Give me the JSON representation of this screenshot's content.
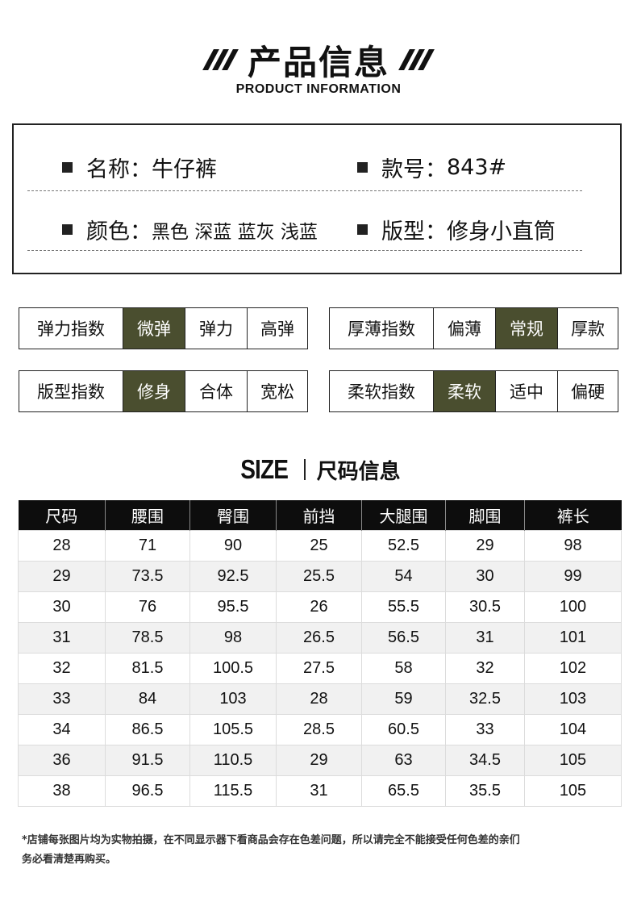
{
  "header": {
    "title": "产品信息",
    "subtitle": "PRODUCT INFORMATION"
  },
  "info": {
    "name_label": "名称：",
    "name_value": "牛仔裤",
    "style_no_label": "款号：",
    "style_no_value": "843#",
    "color_label": "颜色：",
    "color_value": "黑色 深蓝 蓝灰 浅蓝",
    "fit_label": "版型：",
    "fit_value": "修身小直筒"
  },
  "indices": [
    {
      "label": "弹力指数",
      "options": [
        "微弹",
        "弹力",
        "高弹"
      ],
      "selected": 0
    },
    {
      "label": "厚薄指数",
      "options": [
        "偏薄",
        "常规",
        "厚款"
      ],
      "selected": 1
    },
    {
      "label": "版型指数",
      "options": [
        "修身",
        "合体",
        "宽松"
      ],
      "selected": 0
    },
    {
      "label": "柔软指数",
      "options": [
        "柔软",
        "适中",
        "偏硬"
      ],
      "selected": 0
    }
  ],
  "size_section": {
    "title_en": "SIZE",
    "title_cn": "尺码信息"
  },
  "size_table": {
    "headers": [
      "尺码",
      "腰围",
      "臀围",
      "前挡",
      "大腿围",
      "脚围",
      "裤长"
    ],
    "rows": [
      [
        "28",
        "71",
        "90",
        "25",
        "52.5",
        "29",
        "98"
      ],
      [
        "29",
        "73.5",
        "92.5",
        "25.5",
        "54",
        "30",
        "99"
      ],
      [
        "30",
        "76",
        "95.5",
        "26",
        "55.5",
        "30.5",
        "100"
      ],
      [
        "31",
        "78.5",
        "98",
        "26.5",
        "56.5",
        "31",
        "101"
      ],
      [
        "32",
        "81.5",
        "100.5",
        "27.5",
        "58",
        "32",
        "102"
      ],
      [
        "33",
        "84",
        "103",
        "28",
        "59",
        "32.5",
        "103"
      ],
      [
        "34",
        "86.5",
        "105.5",
        "28.5",
        "60.5",
        "33",
        "104"
      ],
      [
        "36",
        "91.5",
        "110.5",
        "29",
        "63",
        "34.5",
        "105"
      ],
      [
        "38",
        "96.5",
        "115.5",
        "31",
        "65.5",
        "35.5",
        "105"
      ]
    ]
  },
  "note_line1": "*店铺每张图片均为实物拍摄，在不同显示器下看商品会存在色差问题，所以请完全不能接受任何色差的亲们",
  "note_line2": "务必看清楚再购买。",
  "colors": {
    "selected_bg": "#4a4e2f",
    "table_header_bg": "#0d0d0d"
  }
}
